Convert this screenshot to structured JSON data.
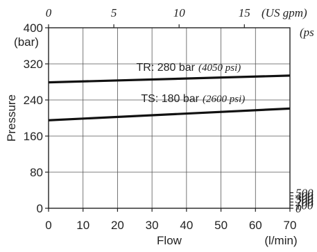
{
  "chart_data": {
    "type": "line",
    "x_axis": {
      "label": "Flow",
      "unit": "(l/min)",
      "range": [
        0,
        70
      ],
      "ticks": [
        0,
        10,
        20,
        30,
        40,
        50,
        60,
        70
      ]
    },
    "x_axis_top": {
      "unit": "(US gpm)",
      "ticks": [
        0,
        5,
        10,
        15
      ]
    },
    "y_axis": {
      "label": "Pressure",
      "unit": "(bar)",
      "range": [
        0,
        400
      ],
      "ticks": [
        0,
        80,
        160,
        240,
        320,
        400
      ]
    },
    "y_axis_right": {
      "unit": "(ps",
      "ticks": [
        0,
        100,
        200,
        300,
        400,
        500
      ]
    },
    "grid": true,
    "series": [
      {
        "name": "TR: 280 bar",
        "note": "(4050 psi)",
        "x": [
          0,
          70
        ],
        "y": [
          279,
          294
        ]
      },
      {
        "name": "TS: 180 bar",
        "note": "(2600 psi)",
        "x": [
          0,
          70
        ],
        "y": [
          195,
          221
        ]
      }
    ]
  }
}
